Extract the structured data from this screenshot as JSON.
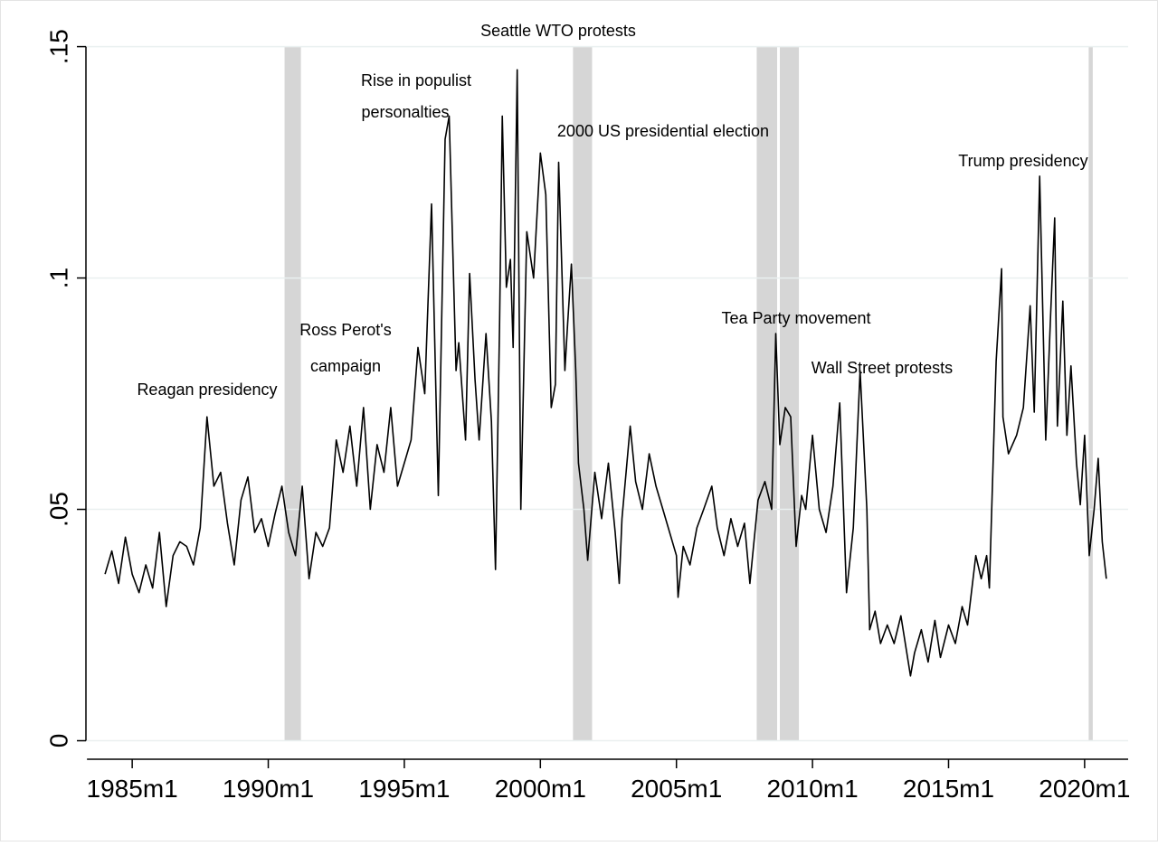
{
  "chart_data": {
    "type": "line",
    "annotations": [
      "Seattle WTO protests",
      "Rise in populist",
      "personalties",
      "2000 US presidential election",
      "Trump presidency",
      "Tea Party movement",
      "Ross Perot's",
      "campaign",
      "Wall Street protests",
      "Reagan presidency"
    ],
    "xlim": [
      1983.3,
      2021.6
    ],
    "xticks": [
      {
        "value": 1985,
        "label": "1985m1"
      },
      {
        "value": 1990,
        "label": "1990m1"
      },
      {
        "value": 1995,
        "label": "1995m1"
      },
      {
        "value": 2000,
        "label": "2000m1"
      },
      {
        "value": 2005,
        "label": "2005m1"
      },
      {
        "value": 2010,
        "label": "2010m1"
      },
      {
        "value": 2015,
        "label": "2015m1"
      },
      {
        "value": 2020,
        "label": "2020m1"
      }
    ],
    "ylim": [
      -0.004,
      0.155
    ],
    "yticks": [
      0,
      {
        "value": 0.05,
        "label": ".05"
      },
      {
        "value": 0.1,
        "label": ".1"
      },
      {
        "value": 0.15,
        "label": ".15"
      }
    ],
    "grid": true,
    "color": "#000000",
    "shade_color": "#d6d6d6",
    "shaded_periods": [
      [
        1990.6,
        1991.2
      ],
      [
        2001.2,
        2001.9
      ],
      [
        2007.95,
        2008.7
      ],
      [
        2008.8,
        2009.5
      ],
      [
        2020.15,
        2020.3
      ]
    ],
    "x": [
      1984.0,
      1984.25,
      1984.5,
      1984.75,
      1985.0,
      1985.25,
      1985.5,
      1985.75,
      1986.0,
      1986.25,
      1986.5,
      1986.75,
      1987.0,
      1987.25,
      1987.5,
      1987.75,
      1988.0,
      1988.25,
      1988.5,
      1988.75,
      1989.0,
      1989.25,
      1989.5,
      1989.75,
      1990.0,
      1990.25,
      1990.5,
      1990.75,
      1991.0,
      1991.25,
      1991.5,
      1991.75,
      1992.0,
      1992.25,
      1992.5,
      1992.75,
      1993.0,
      1993.25,
      1993.5,
      1993.75,
      1994.0,
      1994.25,
      1994.5,
      1994.75,
      1995.0,
      1995.25,
      1995.5,
      1995.75,
      1996.0,
      1996.25,
      1996.5,
      1996.65,
      1996.9,
      1997.0,
      1997.25,
      1997.4,
      1997.6,
      1997.75,
      1998.0,
      1998.2,
      1998.35,
      1998.5,
      1998.6,
      1998.75,
      1998.9,
      1999.0,
      1999.15,
      1999.28,
      1999.5,
      1999.75,
      2000.0,
      2000.2,
      2000.4,
      2000.55,
      2000.67,
      2000.9,
      2001.0,
      2001.14,
      2001.3,
      2001.4,
      2001.6,
      2001.74,
      2002.0,
      2002.25,
      2002.5,
      2002.75,
      2002.9,
      2003.0,
      2003.3,
      2003.5,
      2003.75,
      2004.0,
      2004.25,
      2004.5,
      2004.75,
      2005.0,
      2005.06,
      2005.25,
      2005.5,
      2005.75,
      2006.0,
      2006.3,
      2006.5,
      2006.75,
      2007.0,
      2007.25,
      2007.5,
      2007.7,
      2008.0,
      2008.25,
      2008.5,
      2008.65,
      2008.8,
      2009.0,
      2009.2,
      2009.4,
      2009.6,
      2009.75,
      2010.0,
      2010.25,
      2010.5,
      2010.75,
      2011.0,
      2011.25,
      2011.5,
      2011.75,
      2012.0,
      2012.1,
      2012.3,
      2012.5,
      2012.75,
      2013.0,
      2013.25,
      2013.6,
      2013.75,
      2014.0,
      2014.25,
      2014.5,
      2014.7,
      2015.0,
      2015.25,
      2015.5,
      2015.7,
      2016.0,
      2016.2,
      2016.4,
      2016.5,
      2016.75,
      2016.95,
      2017.0,
      2017.2,
      2017.5,
      2017.75,
      2018.0,
      2018.15,
      2018.35,
      2018.57,
      2018.75,
      2018.9,
      2019.0,
      2019.2,
      2019.35,
      2019.5,
      2019.7,
      2019.84,
      2020.0,
      2020.17,
      2020.35,
      2020.5,
      2020.65,
      2020.8
    ],
    "values": [
      0.036,
      0.041,
      0.034,
      0.044,
      0.036,
      0.032,
      0.038,
      0.033,
      0.045,
      0.029,
      0.04,
      0.043,
      0.042,
      0.038,
      0.046,
      0.07,
      0.055,
      0.058,
      0.047,
      0.038,
      0.052,
      0.057,
      0.045,
      0.048,
      0.042,
      0.049,
      0.055,
      0.045,
      0.04,
      0.055,
      0.035,
      0.045,
      0.042,
      0.046,
      0.065,
      0.058,
      0.068,
      0.055,
      0.072,
      0.05,
      0.064,
      0.058,
      0.072,
      0.055,
      0.06,
      0.065,
      0.085,
      0.075,
      0.116,
      0.053,
      0.13,
      0.135,
      0.08,
      0.086,
      0.065,
      0.101,
      0.078,
      0.065,
      0.088,
      0.069,
      0.037,
      0.09,
      0.135,
      0.098,
      0.104,
      0.085,
      0.145,
      0.05,
      0.11,
      0.1,
      0.127,
      0.118,
      0.072,
      0.077,
      0.125,
      0.08,
      0.09,
      0.103,
      0.08,
      0.06,
      0.05,
      0.039,
      0.058,
      0.048,
      0.06,
      0.045,
      0.034,
      0.048,
      0.068,
      0.056,
      0.05,
      0.062,
      0.055,
      0.05,
      0.045,
      0.04,
      0.031,
      0.042,
      0.038,
      0.046,
      0.05,
      0.055,
      0.046,
      0.04,
      0.048,
      0.042,
      0.047,
      0.034,
      0.052,
      0.056,
      0.05,
      0.088,
      0.064,
      0.072,
      0.07,
      0.042,
      0.053,
      0.05,
      0.066,
      0.05,
      0.045,
      0.055,
      0.073,
      0.032,
      0.046,
      0.08,
      0.05,
      0.024,
      0.028,
      0.021,
      0.025,
      0.021,
      0.027,
      0.014,
      0.019,
      0.024,
      0.017,
      0.026,
      0.018,
      0.025,
      0.021,
      0.029,
      0.025,
      0.04,
      0.035,
      0.04,
      0.033,
      0.082,
      0.102,
      0.07,
      0.062,
      0.066,
      0.072,
      0.094,
      0.071,
      0.122,
      0.065,
      0.092,
      0.113,
      0.068,
      0.095,
      0.066,
      0.081,
      0.06,
      0.051,
      0.066,
      0.04,
      0.05,
      0.061,
      0.043,
      0.035
    ]
  }
}
